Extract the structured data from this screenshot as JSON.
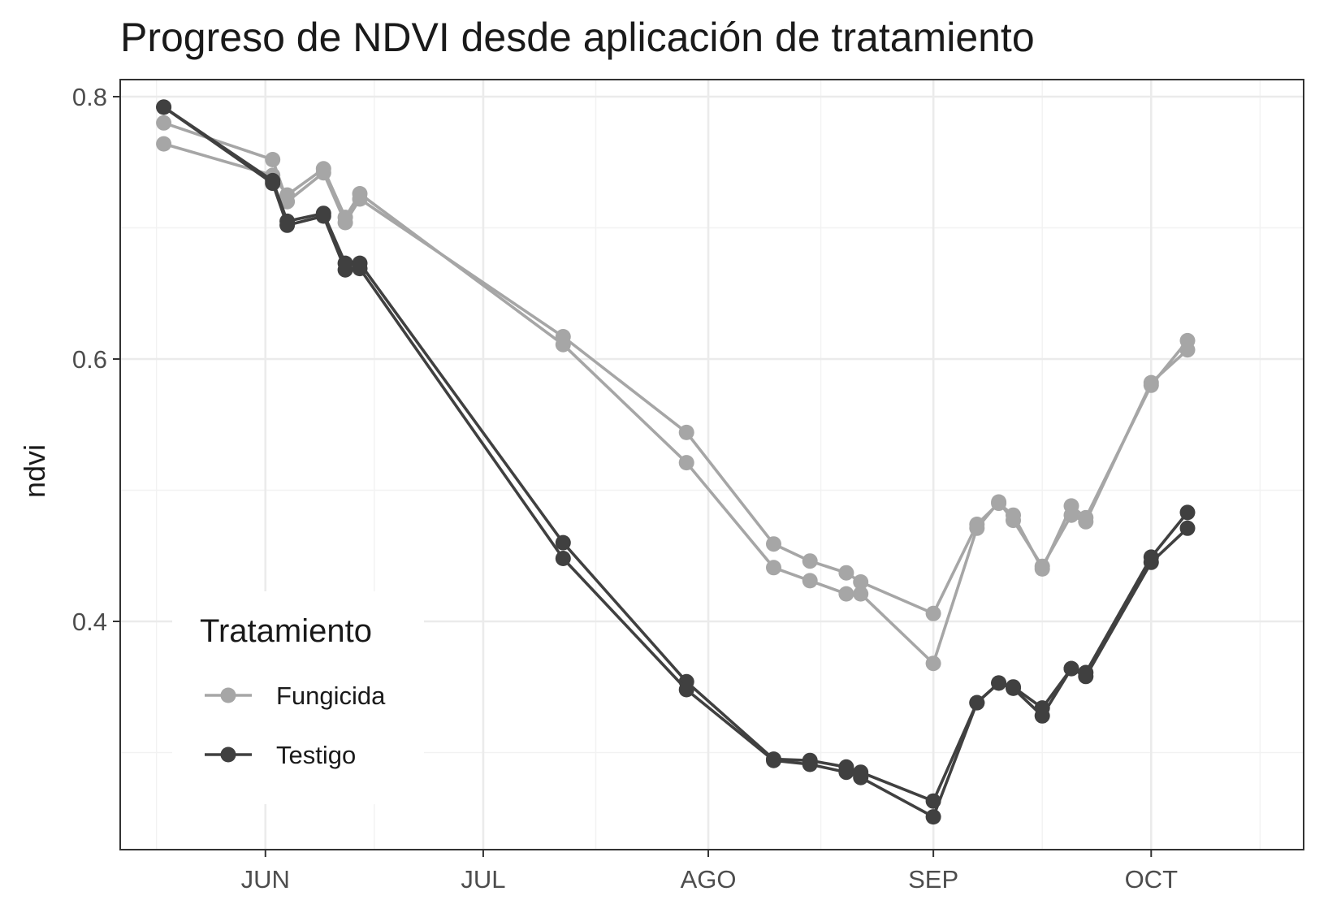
{
  "chart_data": {
    "type": "line",
    "title": "Progreso de NDVI desde aplicación de tratamiento",
    "xlabel": "",
    "ylabel": "ndvi",
    "x_ticks": [
      "JUN",
      "JUL",
      "AGO",
      "SEP",
      "OCT"
    ],
    "x_tick_dates": [
      "06-01",
      "07-01",
      "08-01",
      "09-01",
      "10-01"
    ],
    "y_ticks": [
      0.4,
      0.6,
      0.8
    ],
    "y_tick_labels": [
      "0.4",
      "0.6",
      "0.8"
    ],
    "xlim": [
      "05-12",
      "10-22"
    ],
    "ylim": [
      0.226,
      0.813
    ],
    "grid": true,
    "legend": {
      "title": "Tratamiento",
      "position": "bottom-left"
    },
    "colors": {
      "Fungicida": "#a6a6a6",
      "Testigo": "#404040"
    },
    "series": [
      {
        "name": "Fungicida",
        "group": "Fungicida",
        "x": [
          "05-18",
          "06-02",
          "06-04",
          "06-09",
          "06-12",
          "06-14",
          "07-12",
          "07-29",
          "08-10",
          "08-15",
          "08-20",
          "08-22",
          "09-01",
          "09-07",
          "09-10",
          "09-12",
          "09-16",
          "09-20",
          "09-22",
          "10-01",
          "10-06"
        ],
        "values": [
          0.78,
          0.752,
          0.72,
          0.742,
          0.704,
          0.722,
          0.617,
          0.544,
          0.459,
          0.446,
          0.437,
          0.43,
          0.406,
          0.474,
          0.49,
          0.481,
          0.44,
          0.488,
          0.479,
          0.58,
          0.614
        ]
      },
      {
        "name": "Fungicida",
        "group": "Fungicida",
        "x": [
          "05-18",
          "06-02",
          "06-04",
          "06-09",
          "06-12",
          "06-14",
          "07-12",
          "07-29",
          "08-10",
          "08-15",
          "08-20",
          "08-22",
          "09-01",
          "09-07",
          "09-10",
          "09-12",
          "09-16",
          "09-20",
          "09-22",
          "10-01",
          "10-06"
        ],
        "values": [
          0.764,
          0.74,
          0.725,
          0.745,
          0.708,
          0.726,
          0.611,
          0.521,
          0.441,
          0.431,
          0.421,
          0.421,
          0.368,
          0.471,
          0.491,
          0.477,
          0.442,
          0.481,
          0.476,
          0.582,
          0.607
        ]
      },
      {
        "name": "Testigo",
        "group": "Testigo",
        "x": [
          "05-18",
          "06-02",
          "06-04",
          "06-09",
          "06-12",
          "06-14",
          "07-12",
          "07-29",
          "08-10",
          "08-15",
          "08-20",
          "08-22",
          "09-01",
          "09-07",
          "09-10",
          "09-12",
          "09-16",
          "09-20",
          "09-22",
          "10-01",
          "10-06"
        ],
        "values": [
          0.792,
          0.736,
          0.705,
          0.711,
          0.673,
          0.673,
          0.46,
          0.354,
          0.295,
          0.294,
          0.289,
          0.285,
          0.263,
          0.338,
          0.353,
          0.35,
          0.334,
          0.364,
          0.361,
          0.449,
          0.483
        ]
      },
      {
        "name": "Testigo",
        "group": "Testigo",
        "x": [
          "05-18",
          "06-02",
          "06-04",
          "06-09",
          "06-12",
          "06-14",
          "07-12",
          "07-29",
          "08-10",
          "08-15",
          "08-20",
          "08-22",
          "09-01",
          "09-07",
          "09-10",
          "09-12",
          "09-16",
          "09-20",
          "09-22",
          "10-01",
          "10-06"
        ],
        "values": [
          0.792,
          0.734,
          0.702,
          0.709,
          0.668,
          0.669,
          0.448,
          0.348,
          0.294,
          0.291,
          0.285,
          0.281,
          0.251,
          0.338,
          0.353,
          0.349,
          0.328,
          0.364,
          0.358,
          0.445,
          0.471
        ]
      }
    ]
  }
}
